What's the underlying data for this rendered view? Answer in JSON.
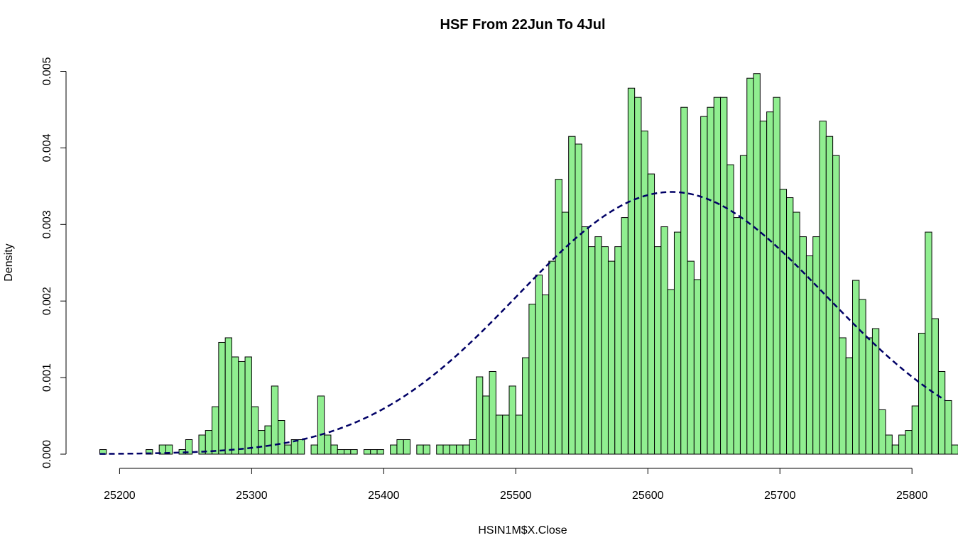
{
  "chart_data": {
    "type": "bar",
    "subtype": "histogram-with-density-curve",
    "title": "HSF From 22Jun To 4Jul",
    "xlabel": "HSIN1M$X.Close",
    "ylabel": "Density",
    "xlim": [
      25185,
      25825
    ],
    "ylim": [
      0,
      0.005
    ],
    "x_ticks": [
      25200,
      25300,
      25400,
      25500,
      25600,
      25700,
      25800
    ],
    "x_tick_labels": [
      "25200",
      "25300",
      "25400",
      "25500",
      "25600",
      "25700",
      "25800"
    ],
    "y_ticks": [
      0,
      0.001,
      0.002,
      0.003,
      0.004,
      0.005
    ],
    "y_tick_labels": [
      "0.000",
      "0.001",
      "0.002",
      "0.003",
      "0.004",
      "0.005"
    ],
    "bin_start": 25185,
    "bin_width": 5,
    "densities": [
      6e-05,
      0,
      0,
      0,
      0,
      0,
      0,
      6e-05,
      0,
      0.00012,
      0.00012,
      0,
      6e-05,
      0.00019,
      0,
      0.00025,
      0.00031,
      0.00062,
      0.00146,
      0.00152,
      0.00127,
      0.00121,
      0.00127,
      0.00062,
      0.00031,
      0.00037,
      0.00089,
      0.00044,
      0.00012,
      0.00019,
      0.00019,
      0,
      0.00012,
      0.00076,
      0.00025,
      0.00012,
      6e-05,
      6e-05,
      6e-05,
      0,
      6e-05,
      6e-05,
      6e-05,
      0,
      0.00012,
      0.00019,
      0.00019,
      0,
      0.00012,
      0.00012,
      0,
      0.00012,
      0.00012,
      0.00012,
      0.00012,
      0.00012,
      0.00019,
      0.00101,
      0.00076,
      0.00108,
      0.00051,
      0.00051,
      0.00089,
      0.00051,
      0.00126,
      0.00196,
      0.00234,
      0.00208,
      0.00252,
      0.00359,
      0.00316,
      0.00415,
      0.00405,
      0.00297,
      0.00271,
      0.00284,
      0.00271,
      0.00252,
      0.00271,
      0.00309,
      0.00478,
      0.00466,
      0.00422,
      0.00366,
      0.00271,
      0.00297,
      0.00215,
      0.0029,
      0.00453,
      0.00252,
      0.00228,
      0.00441,
      0.00453,
      0.00466,
      0.00466,
      0.00378,
      0.00309,
      0.0039,
      0.00491,
      0.00497,
      0.00435,
      0.00447,
      0.00466,
      0.00346,
      0.00335,
      0.00316,
      0.00284,
      0.00259,
      0.00284,
      0.00435,
      0.00415,
      0.0039,
      0.00152,
      0.00126,
      0.00227,
      0.00202,
      0.00152,
      0.00164,
      0.00058,
      0.00025,
      0.00012,
      0.00025,
      0.00031,
      0.00063,
      0.00158,
      0.0029,
      0.00177,
      0.00108,
      0.0007,
      0.00012
    ],
    "density_curve": {
      "type": "normal",
      "mean": 25618,
      "sd": 116.5,
      "x_range": [
        25185,
        25825
      ],
      "style": "dashed"
    },
    "grid": false,
    "legend": "none"
  },
  "colors": {
    "bar_fill": "#90ee90",
    "bar_stroke": "#000000",
    "density_line": "#000066",
    "axis": "#000000",
    "background": "#ffffff"
  }
}
